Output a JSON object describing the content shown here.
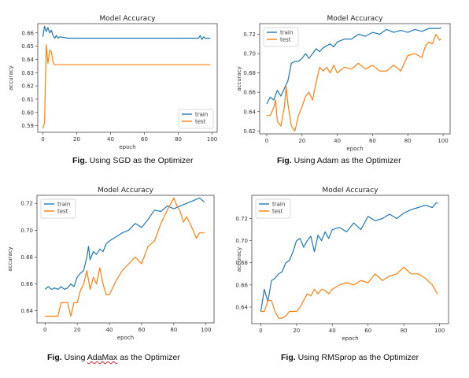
{
  "chart_data": [
    {
      "type": "line",
      "title": "Model Accuracy",
      "xlabel": "epoch",
      "ylabel": "accuracy",
      "xlim": [
        -3,
        103
      ],
      "ylim": [
        0.585,
        0.667
      ],
      "xticks": [
        0,
        20,
        40,
        60,
        80,
        100
      ],
      "yticks": [
        0.59,
        0.6,
        0.61,
        0.62,
        0.63,
        0.64,
        0.65,
        0.66
      ],
      "ytick_labels": [
        "0.59",
        "0.60",
        "0.61",
        "0.62",
        "0.63",
        "0.64",
        "0.65",
        "0.66"
      ],
      "legend": "lower-right",
      "grid": false,
      "series": [
        {
          "name": "train",
          "color": "#1f77b4",
          "x": [
            0,
            1,
            2,
            3,
            4,
            5,
            6,
            7,
            8,
            9,
            10,
            15,
            20,
            30,
            40,
            50,
            60,
            70,
            80,
            90,
            92,
            93,
            94,
            95,
            96,
            97,
            98,
            99
          ],
          "y": [
            0.657,
            0.665,
            0.661,
            0.664,
            0.66,
            0.662,
            0.658,
            0.656,
            0.658,
            0.656,
            0.657,
            0.656,
            0.656,
            0.656,
            0.656,
            0.656,
            0.656,
            0.656,
            0.656,
            0.656,
            0.656,
            0.658,
            0.655,
            0.657,
            0.656,
            0.656,
            0.656,
            0.656
          ]
        },
        {
          "name": "test",
          "color": "#ff7f0e",
          "x": [
            0,
            1,
            2,
            3,
            4,
            5,
            6,
            7,
            8,
            9,
            10,
            20,
            40,
            60,
            80,
            99
          ],
          "y": [
            0.588,
            0.592,
            0.651,
            0.637,
            0.647,
            0.646,
            0.638,
            0.636,
            0.636,
            0.636,
            0.636,
            0.636,
            0.636,
            0.636,
            0.636,
            0.636
          ]
        }
      ]
    },
    {
      "type": "line",
      "title": "Model Accuracy",
      "xlabel": "epoch",
      "ylabel": "accuracy",
      "xlim": [
        -4,
        104
      ],
      "ylim": [
        0.617,
        0.731
      ],
      "xticks": [
        0,
        20,
        40,
        60,
        80,
        100
      ],
      "yticks": [
        0.62,
        0.64,
        0.66,
        0.68,
        0.7,
        0.72
      ],
      "ytick_labels": [
        "0.62",
        "0.64",
        "0.66",
        "0.68",
        "0.70",
        "0.72"
      ],
      "legend": "upper-left",
      "grid": false,
      "series": [
        {
          "name": "train",
          "color": "#1f77b4",
          "x": [
            0,
            2,
            4,
            6,
            8,
            10,
            12,
            14,
            16,
            18,
            20,
            22,
            24,
            26,
            28,
            30,
            32,
            34,
            36,
            38,
            40,
            44,
            48,
            52,
            56,
            60,
            64,
            68,
            72,
            76,
            80,
            84,
            88,
            92,
            96,
            98,
            99
          ],
          "y": [
            0.648,
            0.655,
            0.652,
            0.662,
            0.656,
            0.664,
            0.672,
            0.69,
            0.692,
            0.692,
            0.695,
            0.7,
            0.695,
            0.7,
            0.705,
            0.702,
            0.706,
            0.708,
            0.71,
            0.707,
            0.712,
            0.715,
            0.715,
            0.72,
            0.718,
            0.722,
            0.72,
            0.725,
            0.722,
            0.724,
            0.722,
            0.725,
            0.723,
            0.726,
            0.726,
            0.726,
            0.727
          ]
        },
        {
          "name": "test",
          "color": "#ff7f0e",
          "x": [
            0,
            2,
            4,
            5,
            6,
            8,
            10,
            11,
            12,
            14,
            16,
            18,
            20,
            22,
            24,
            26,
            28,
            30,
            32,
            34,
            36,
            38,
            40,
            44,
            48,
            52,
            56,
            60,
            64,
            68,
            72,
            76,
            80,
            84,
            88,
            90,
            92,
            94,
            96,
            98,
            99
          ],
          "y": [
            0.636,
            0.636,
            0.644,
            0.652,
            0.63,
            0.625,
            0.645,
            0.666,
            0.648,
            0.625,
            0.62,
            0.636,
            0.645,
            0.656,
            0.66,
            0.652,
            0.67,
            0.686,
            0.682,
            0.686,
            0.68,
            0.688,
            0.68,
            0.686,
            0.684,
            0.69,
            0.684,
            0.688,
            0.682,
            0.682,
            0.688,
            0.682,
            0.698,
            0.7,
            0.696,
            0.708,
            0.712,
            0.71,
            0.72,
            0.714,
            0.715
          ]
        }
      ]
    },
    {
      "type": "line",
      "title": "Model Accuracy",
      "xlabel": "epoch",
      "ylabel": "accuracy",
      "xlim": [
        -5,
        105
      ],
      "ylim": [
        0.631,
        0.726
      ],
      "xticks": [
        0,
        20,
        40,
        60,
        80,
        100
      ],
      "yticks": [
        0.64,
        0.66,
        0.68,
        0.7,
        0.72
      ],
      "ytick_labels": [
        "0.64",
        "0.66",
        "0.68",
        "0.70",
        "0.72"
      ],
      "legend": "upper-left",
      "grid": false,
      "series": [
        {
          "name": "train",
          "color": "#1f77b4",
          "x": [
            0,
            2,
            4,
            6,
            8,
            10,
            12,
            14,
            16,
            18,
            20,
            22,
            24,
            26,
            27,
            28,
            30,
            32,
            34,
            36,
            38,
            40,
            44,
            48,
            52,
            56,
            60,
            64,
            68,
            72,
            76,
            80,
            84,
            88,
            92,
            96,
            98,
            99
          ],
          "y": [
            0.656,
            0.658,
            0.656,
            0.657,
            0.656,
            0.658,
            0.656,
            0.657,
            0.66,
            0.658,
            0.665,
            0.668,
            0.67,
            0.68,
            0.688,
            0.678,
            0.684,
            0.682,
            0.686,
            0.684,
            0.69,
            0.692,
            0.695,
            0.698,
            0.7,
            0.705,
            0.702,
            0.708,
            0.715,
            0.714,
            0.718,
            0.716,
            0.718,
            0.72,
            0.722,
            0.724,
            0.722,
            0.721
          ]
        },
        {
          "name": "test",
          "color": "#ff7f0e",
          "x": [
            0,
            2,
            4,
            6,
            8,
            10,
            12,
            14,
            16,
            18,
            20,
            22,
            24,
            26,
            28,
            30,
            32,
            34,
            36,
            38,
            40,
            44,
            48,
            52,
            56,
            60,
            64,
            68,
            72,
            76,
            80,
            82,
            84,
            86,
            88,
            90,
            92,
            94,
            96,
            98,
            99
          ],
          "y": [
            0.636,
            0.636,
            0.636,
            0.636,
            0.636,
            0.646,
            0.646,
            0.646,
            0.636,
            0.646,
            0.646,
            0.655,
            0.66,
            0.67,
            0.656,
            0.665,
            0.66,
            0.672,
            0.66,
            0.652,
            0.652,
            0.662,
            0.67,
            0.675,
            0.68,
            0.675,
            0.688,
            0.692,
            0.705,
            0.715,
            0.724,
            0.718,
            0.714,
            0.706,
            0.71,
            0.705,
            0.7,
            0.694,
            0.698,
            0.698,
            0.698
          ]
        }
      ]
    },
    {
      "type": "line",
      "title": "Model Accuracy",
      "xlabel": "epoch",
      "ylabel": "accuracy",
      "xlim": [
        -5,
        105
      ],
      "ylim": [
        0.625,
        0.741
      ],
      "xticks": [
        0,
        20,
        40,
        60,
        80,
        100
      ],
      "yticks": [
        0.64,
        0.66,
        0.68,
        0.7,
        0.72
      ],
      "ytick_labels": [
        "0.64",
        "0.66",
        "0.68",
        "0.70",
        "0.72"
      ],
      "legend": "upper-left",
      "grid": false,
      "series": [
        {
          "name": "train",
          "color": "#1f77b4",
          "x": [
            0,
            2,
            4,
            6,
            8,
            10,
            12,
            14,
            16,
            18,
            20,
            22,
            24,
            26,
            28,
            30,
            32,
            34,
            36,
            38,
            40,
            44,
            48,
            52,
            56,
            60,
            64,
            68,
            72,
            76,
            80,
            84,
            88,
            92,
            96,
            98,
            99
          ],
          "y": [
            0.636,
            0.656,
            0.645,
            0.664,
            0.666,
            0.67,
            0.672,
            0.68,
            0.682,
            0.69,
            0.7,
            0.702,
            0.694,
            0.7,
            0.704,
            0.69,
            0.705,
            0.7,
            0.708,
            0.702,
            0.71,
            0.712,
            0.708,
            0.716,
            0.71,
            0.722,
            0.718,
            0.72,
            0.724,
            0.72,
            0.725,
            0.728,
            0.73,
            0.732,
            0.73,
            0.734,
            0.734
          ]
        },
        {
          "name": "test",
          "color": "#ff7f0e",
          "x": [
            0,
            2,
            4,
            6,
            8,
            10,
            12,
            14,
            16,
            18,
            20,
            22,
            24,
            26,
            28,
            30,
            32,
            34,
            36,
            38,
            40,
            44,
            48,
            52,
            56,
            60,
            64,
            68,
            72,
            76,
            80,
            84,
            88,
            92,
            96,
            98,
            99
          ],
          "y": [
            0.636,
            0.636,
            0.646,
            0.646,
            0.636,
            0.63,
            0.63,
            0.632,
            0.636,
            0.636,
            0.636,
            0.64,
            0.646,
            0.652,
            0.65,
            0.656,
            0.652,
            0.656,
            0.655,
            0.652,
            0.656,
            0.66,
            0.662,
            0.66,
            0.664,
            0.662,
            0.67,
            0.664,
            0.668,
            0.67,
            0.676,
            0.67,
            0.67,
            0.666,
            0.66,
            0.654,
            0.652
          ]
        }
      ]
    }
  ],
  "captions": [
    {
      "prefix": "Fig.",
      "pre": " Using ",
      "name": "SGD",
      "post": " as the Optimizer"
    },
    {
      "prefix": "Fig.",
      "pre": " Using ",
      "name": "Adam",
      "post": " as the Optimizer"
    },
    {
      "prefix": "Fig.",
      "pre": " Using ",
      "name": "AdaMax",
      "post": " as the Optimizer"
    },
    {
      "prefix": "Fig.",
      "pre": " Using ",
      "name": "RMSprop",
      "post": " as the Optimizer"
    }
  ]
}
